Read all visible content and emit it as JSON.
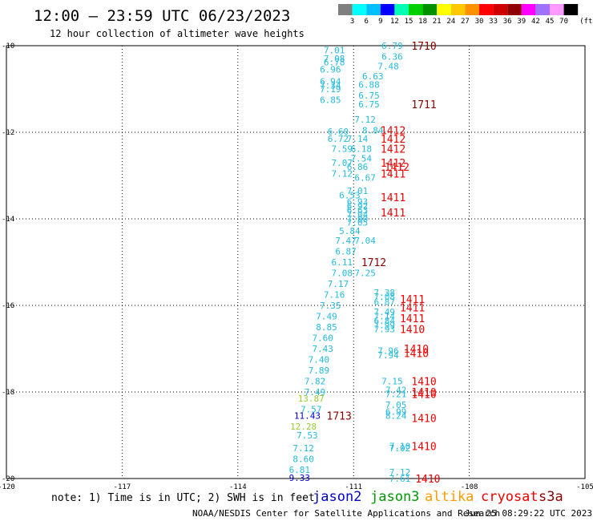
{
  "title": "12:00 — 23:59 UTC 06/23/2023",
  "subtitle": "12 hour collection of altimeter wave heights",
  "note": "note: 1) Time is in UTC; 2) SWH is in feet",
  "footer_left": "NOAA/NESDIS Center for Satellite Applications and Research",
  "footer_right": "Jun 25 08:29:22 UTC 2023",
  "colorbar": {
    "unit": "(ft)",
    "labels": [
      "3",
      "6",
      "9",
      "12",
      "15",
      "18",
      "21",
      "24",
      "27",
      "30",
      "33",
      "36",
      "39",
      "42",
      "45",
      "70"
    ],
    "colors": [
      "#7f7f7f",
      "#00ffff",
      "#00bfff",
      "#0000ff",
      "#00ffb0",
      "#00cf00",
      "#009000",
      "#ffff00",
      "#ffc800",
      "#ff9000",
      "#ff0000",
      "#d00000",
      "#900000",
      "#ff00ff",
      "#a070ff",
      "#ff99ff",
      "#000000"
    ]
  },
  "satellites": [
    {
      "name": "jason2",
      "color": "#0000cc"
    },
    {
      "name": "jason3",
      "color": "#009900"
    },
    {
      "name": "altika",
      "color": "#ff9900"
    },
    {
      "name": "cryosat",
      "color": "#ee0000"
    },
    {
      "name": "s3a",
      "color": "#880000"
    }
  ],
  "chart_data": {
    "type": "scatter",
    "xlim": [
      -120,
      -105
    ],
    "ylim": [
      -20,
      -10
    ],
    "xticks": [
      -120,
      -117,
      -114,
      -111,
      -108,
      -105
    ],
    "yticks": [
      -10,
      -12,
      -14,
      -16,
      -18,
      -20
    ],
    "grid": true,
    "points": [
      {
        "x": -111.5,
        "y": -10.1,
        "v": "7.01",
        "c": "#22bbdd"
      },
      {
        "x": -110.0,
        "y": -10.0,
        "v": "6.79",
        "c": "#22bbdd"
      },
      {
        "x": -110.0,
        "y": -10.25,
        "v": "6.36",
        "c": "#22bbdd"
      },
      {
        "x": -111.5,
        "y": -10.3,
        "v": "7.08",
        "c": "#22bbdd"
      },
      {
        "x": -111.5,
        "y": -10.38,
        "v": "6.78",
        "c": "#22bbdd"
      },
      {
        "x": -110.1,
        "y": -10.47,
        "v": "7.48",
        "c": "#22bbdd"
      },
      {
        "x": -111.6,
        "y": -10.55,
        "v": "6.96",
        "c": "#22bbdd"
      },
      {
        "x": -110.5,
        "y": -10.7,
        "v": "6.63",
        "c": "#22bbdd"
      },
      {
        "x": -111.6,
        "y": -10.82,
        "v": "6.94",
        "c": "#22bbdd"
      },
      {
        "x": -110.6,
        "y": -10.9,
        "v": "6.88",
        "c": "#22bbdd"
      },
      {
        "x": -111.6,
        "y": -10.92,
        "v": "7.34",
        "c": "#22bbdd"
      },
      {
        "x": -111.6,
        "y": -11.0,
        "v": "7.19",
        "c": "#22bbdd"
      },
      {
        "x": -110.6,
        "y": -11.15,
        "v": "6.75",
        "c": "#22bbdd"
      },
      {
        "x": -111.6,
        "y": -11.25,
        "v": "6.85",
        "c": "#22bbdd"
      },
      {
        "x": -110.6,
        "y": -11.35,
        "v": "6.75",
        "c": "#22bbdd"
      },
      {
        "x": -110.7,
        "y": -11.7,
        "v": "7.12",
        "c": "#22bbdd"
      },
      {
        "x": -111.4,
        "y": -11.98,
        "v": "6.60",
        "c": "#22bbdd"
      },
      {
        "x": -110.5,
        "y": -11.95,
        "v": "8.84",
        "c": "#22bbdd"
      },
      {
        "x": -111.4,
        "y": -12.15,
        "v": "6.72",
        "c": "#22bbdd"
      },
      {
        "x": -110.9,
        "y": -12.15,
        "v": "7.14",
        "c": "#22bbdd"
      },
      {
        "x": -111.3,
        "y": -12.38,
        "v": "7.59",
        "c": "#22bbdd"
      },
      {
        "x": -110.8,
        "y": -12.38,
        "v": "6.18",
        "c": "#22bbdd"
      },
      {
        "x": -110.8,
        "y": -12.6,
        "v": "7.54",
        "c": "#22bbdd"
      },
      {
        "x": -111.3,
        "y": -12.7,
        "v": "7.07",
        "c": "#22bbdd"
      },
      {
        "x": -110.9,
        "y": -12.8,
        "v": "6.86",
        "c": "#22bbdd"
      },
      {
        "x": -111.3,
        "y": -12.95,
        "v": "7.12",
        "c": "#22bbdd"
      },
      {
        "x": -110.7,
        "y": -13.05,
        "v": "6.67",
        "c": "#22bbdd"
      },
      {
        "x": -110.9,
        "y": -13.35,
        "v": "7.01",
        "c": "#22bbdd"
      },
      {
        "x": -111.1,
        "y": -13.45,
        "v": "6.53",
        "c": "#22bbdd"
      },
      {
        "x": -110.9,
        "y": -13.6,
        "v": "6.93",
        "c": "#22bbdd"
      },
      {
        "x": -110.9,
        "y": -13.7,
        "v": "6.92",
        "c": "#22bbdd"
      },
      {
        "x": -110.9,
        "y": -13.8,
        "v": "6.63",
        "c": "#22bbdd"
      },
      {
        "x": -110.9,
        "y": -13.9,
        "v": "7.04",
        "c": "#22bbdd"
      },
      {
        "x": -110.9,
        "y": -14.0,
        "v": "7.00",
        "c": "#22bbdd"
      },
      {
        "x": -110.9,
        "y": -14.08,
        "v": "7.05",
        "c": "#22bbdd"
      },
      {
        "x": -111.1,
        "y": -14.28,
        "v": "5.84",
        "c": "#22bbdd"
      },
      {
        "x": -111.2,
        "y": -14.5,
        "v": "7.47",
        "c": "#22bbdd"
      },
      {
        "x": -110.7,
        "y": -14.5,
        "v": "7.04",
        "c": "#22bbdd"
      },
      {
        "x": -111.2,
        "y": -14.75,
        "v": "6.87",
        "c": "#22bbdd"
      },
      {
        "x": -111.3,
        "y": -15.0,
        "v": "6.11",
        "c": "#22bbdd"
      },
      {
        "x": -111.3,
        "y": -15.25,
        "v": "7.08",
        "c": "#22bbdd"
      },
      {
        "x": -110.7,
        "y": -15.25,
        "v": "7.25",
        "c": "#22bbdd"
      },
      {
        "x": -111.4,
        "y": -15.5,
        "v": "7.17",
        "c": "#22bbdd"
      },
      {
        "x": -110.2,
        "y": -15.7,
        "v": "7.38",
        "c": "#22bbdd"
      },
      {
        "x": -111.5,
        "y": -15.75,
        "v": "7.16",
        "c": "#22bbdd"
      },
      {
        "x": -110.2,
        "y": -15.8,
        "v": "7.08",
        "c": "#22bbdd"
      },
      {
        "x": -110.2,
        "y": -15.92,
        "v": "6.87",
        "c": "#22bbdd"
      },
      {
        "x": -111.6,
        "y": -16.0,
        "v": "7.35",
        "c": "#22bbdd"
      },
      {
        "x": -110.2,
        "y": -16.15,
        "v": "7.49",
        "c": "#22bbdd"
      },
      {
        "x": -111.7,
        "y": -16.25,
        "v": "7.49",
        "c": "#22bbdd"
      },
      {
        "x": -110.2,
        "y": -16.25,
        "v": "7.14",
        "c": "#22bbdd"
      },
      {
        "x": -110.2,
        "y": -16.35,
        "v": "6.84",
        "c": "#22bbdd"
      },
      {
        "x": -110.2,
        "y": -16.45,
        "v": "7.99",
        "c": "#22bbdd"
      },
      {
        "x": -111.7,
        "y": -16.5,
        "v": "8.85",
        "c": "#22bbdd"
      },
      {
        "x": -110.2,
        "y": -16.55,
        "v": "7.93",
        "c": "#22bbdd"
      },
      {
        "x": -111.8,
        "y": -16.75,
        "v": "7.60",
        "c": "#22bbdd"
      },
      {
        "x": -111.8,
        "y": -17.0,
        "v": "7.43",
        "c": "#22bbdd"
      },
      {
        "x": -110.1,
        "y": -17.05,
        "v": "7.96",
        "c": "#22bbdd"
      },
      {
        "x": -111.9,
        "y": -17.25,
        "v": "7.40",
        "c": "#22bbdd"
      },
      {
        "x": -110.1,
        "y": -17.15,
        "v": "7.94",
        "c": "#22bbdd"
      },
      {
        "x": -111.9,
        "y": -17.5,
        "v": "7.89",
        "c": "#22bbdd"
      },
      {
        "x": -112.0,
        "y": -17.75,
        "v": "7.82",
        "c": "#22bbdd"
      },
      {
        "x": -110.0,
        "y": -17.75,
        "v": "7.15",
        "c": "#22bbdd"
      },
      {
        "x": -112.0,
        "y": -18.0,
        "v": "7.49",
        "c": "#22bbdd"
      },
      {
        "x": -109.9,
        "y": -17.95,
        "v": "7.42",
        "c": "#22bbdd"
      },
      {
        "x": -109.9,
        "y": -18.05,
        "v": "7.21",
        "c": "#22bbdd"
      },
      {
        "x": -112.1,
        "y": -18.4,
        "v": "7.57",
        "c": "#22bbdd"
      },
      {
        "x": -109.9,
        "y": -18.3,
        "v": "7.05",
        "c": "#22bbdd"
      },
      {
        "x": -109.9,
        "y": -18.45,
        "v": "6.99",
        "c": "#22bbdd"
      },
      {
        "x": -109.9,
        "y": -18.55,
        "v": "8.24",
        "c": "#22bbdd"
      },
      {
        "x": -112.2,
        "y": -19.0,
        "v": "7.53",
        "c": "#22bbdd"
      },
      {
        "x": -112.3,
        "y": -19.3,
        "v": "7.12",
        "c": "#22bbdd"
      },
      {
        "x": -109.8,
        "y": -19.25,
        "v": "7.10",
        "c": "#22bbdd"
      },
      {
        "x": -109.8,
        "y": -19.3,
        "v": "7.02",
        "c": "#22bbdd"
      },
      {
        "x": -112.3,
        "y": -19.55,
        "v": "8.60",
        "c": "#22bbdd"
      },
      {
        "x": -112.4,
        "y": -19.8,
        "v": "6.81",
        "c": "#22bbdd"
      },
      {
        "x": -109.8,
        "y": -19.85,
        "v": "7.12",
        "c": "#22bbdd"
      },
      {
        "x": -109.8,
        "y": -20.0,
        "v": "7.61",
        "c": "#22bbdd"
      },
      {
        "x": -112.1,
        "y": -18.15,
        "v": "13.87",
        "c": "#99cc33"
      },
      {
        "x": -112.3,
        "y": -18.8,
        "v": "12.28",
        "c": "#99cc33"
      },
      {
        "x": -112.2,
        "y": -18.55,
        "v": "11.43",
        "c": "#0000cc"
      },
      {
        "x": -112.4,
        "y": -19.98,
        "v": "9.33",
        "c": "#0000cc"
      }
    ],
    "passes": [
      {
        "x": -109.5,
        "y": -10.0,
        "label": "1710",
        "c": "#880000"
      },
      {
        "x": -109.5,
        "y": -11.35,
        "label": "1711",
        "c": "#880000"
      },
      {
        "x": -110.3,
        "y": -11.95,
        "label": "1412",
        "c": "#ee0000"
      },
      {
        "x": -110.3,
        "y": -12.15,
        "label": "1412",
        "c": "#ee0000"
      },
      {
        "x": -110.3,
        "y": -12.38,
        "label": "1412",
        "c": "#ee0000"
      },
      {
        "x": -110.3,
        "y": -12.7,
        "label": "1412",
        "c": "#ee0000"
      },
      {
        "x": -110.2,
        "y": -12.8,
        "label": "1412",
        "c": "#ee0000"
      },
      {
        "x": -110.3,
        "y": -12.95,
        "label": "1411",
        "c": "#ee0000"
      },
      {
        "x": -110.3,
        "y": -13.5,
        "label": "1411",
        "c": "#ee0000"
      },
      {
        "x": -110.3,
        "y": -13.85,
        "label": "1411",
        "c": "#ee0000"
      },
      {
        "x": -110.8,
        "y": -15.0,
        "label": "1712",
        "c": "#880000"
      },
      {
        "x": -109.8,
        "y": -15.85,
        "label": "1411",
        "c": "#ee0000"
      },
      {
        "x": -109.8,
        "y": -16.05,
        "label": "1411",
        "c": "#ee0000"
      },
      {
        "x": -109.8,
        "y": -16.3,
        "label": "1411",
        "c": "#ee0000"
      },
      {
        "x": -109.8,
        "y": -16.55,
        "label": "1410",
        "c": "#ee0000"
      },
      {
        "x": -109.7,
        "y": -17.0,
        "label": "1410",
        "c": "#ee0000"
      },
      {
        "x": -109.7,
        "y": -17.1,
        "label": "1410",
        "c": "#ee0000"
      },
      {
        "x": -109.5,
        "y": -17.75,
        "label": "1410",
        "c": "#ee0000"
      },
      {
        "x": -109.5,
        "y": -18.0,
        "label": "1410",
        "c": "#ee0000"
      },
      {
        "x": -109.5,
        "y": -18.05,
        "label": "1410",
        "c": "#ee0000"
      },
      {
        "x": -111.7,
        "y": -18.55,
        "label": "1713",
        "c": "#880000"
      },
      {
        "x": -109.5,
        "y": -18.6,
        "label": "1410",
        "c": "#ee0000"
      },
      {
        "x": -109.5,
        "y": -19.25,
        "label": "1410",
        "c": "#ee0000"
      },
      {
        "x": -109.4,
        "y": -20.0,
        "label": "1410",
        "c": "#ee0000"
      }
    ]
  }
}
